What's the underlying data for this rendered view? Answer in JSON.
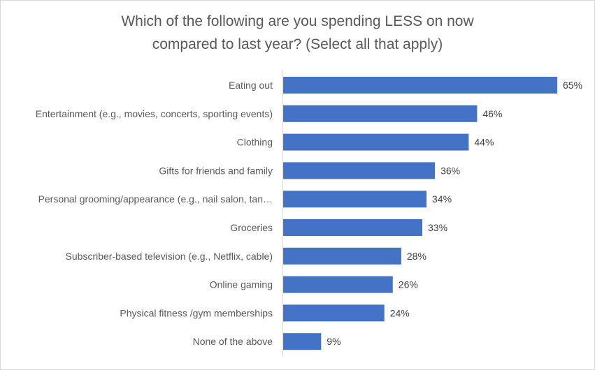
{
  "chart_data": {
    "type": "bar",
    "orientation": "horizontal",
    "title_lines": [
      "Which of the following are you spending LESS on now",
      "compared to last year? (Select all that apply)"
    ],
    "categories": [
      "Eating out",
      "Entertainment (e.g., movies, concerts, sporting events)",
      "Clothing",
      "Gifts for friends and family",
      "Personal grooming/appearance (e.g., nail salon, tan…",
      "Groceries",
      "Subscriber-based television (e.g., Netflix, cable)",
      "Online gaming",
      "Physical fitness /gym memberships",
      "None of the above"
    ],
    "values": [
      65,
      46,
      44,
      36,
      34,
      33,
      28,
      26,
      24,
      9
    ],
    "value_labels": [
      "65%",
      "46%",
      "44%",
      "36%",
      "34%",
      "33%",
      "28%",
      "26%",
      "24%",
      "9%"
    ],
    "unit": "%",
    "xlim": [
      0,
      70
    ],
    "grid": false,
    "legend": "none",
    "bar_color": "#4472c4"
  }
}
